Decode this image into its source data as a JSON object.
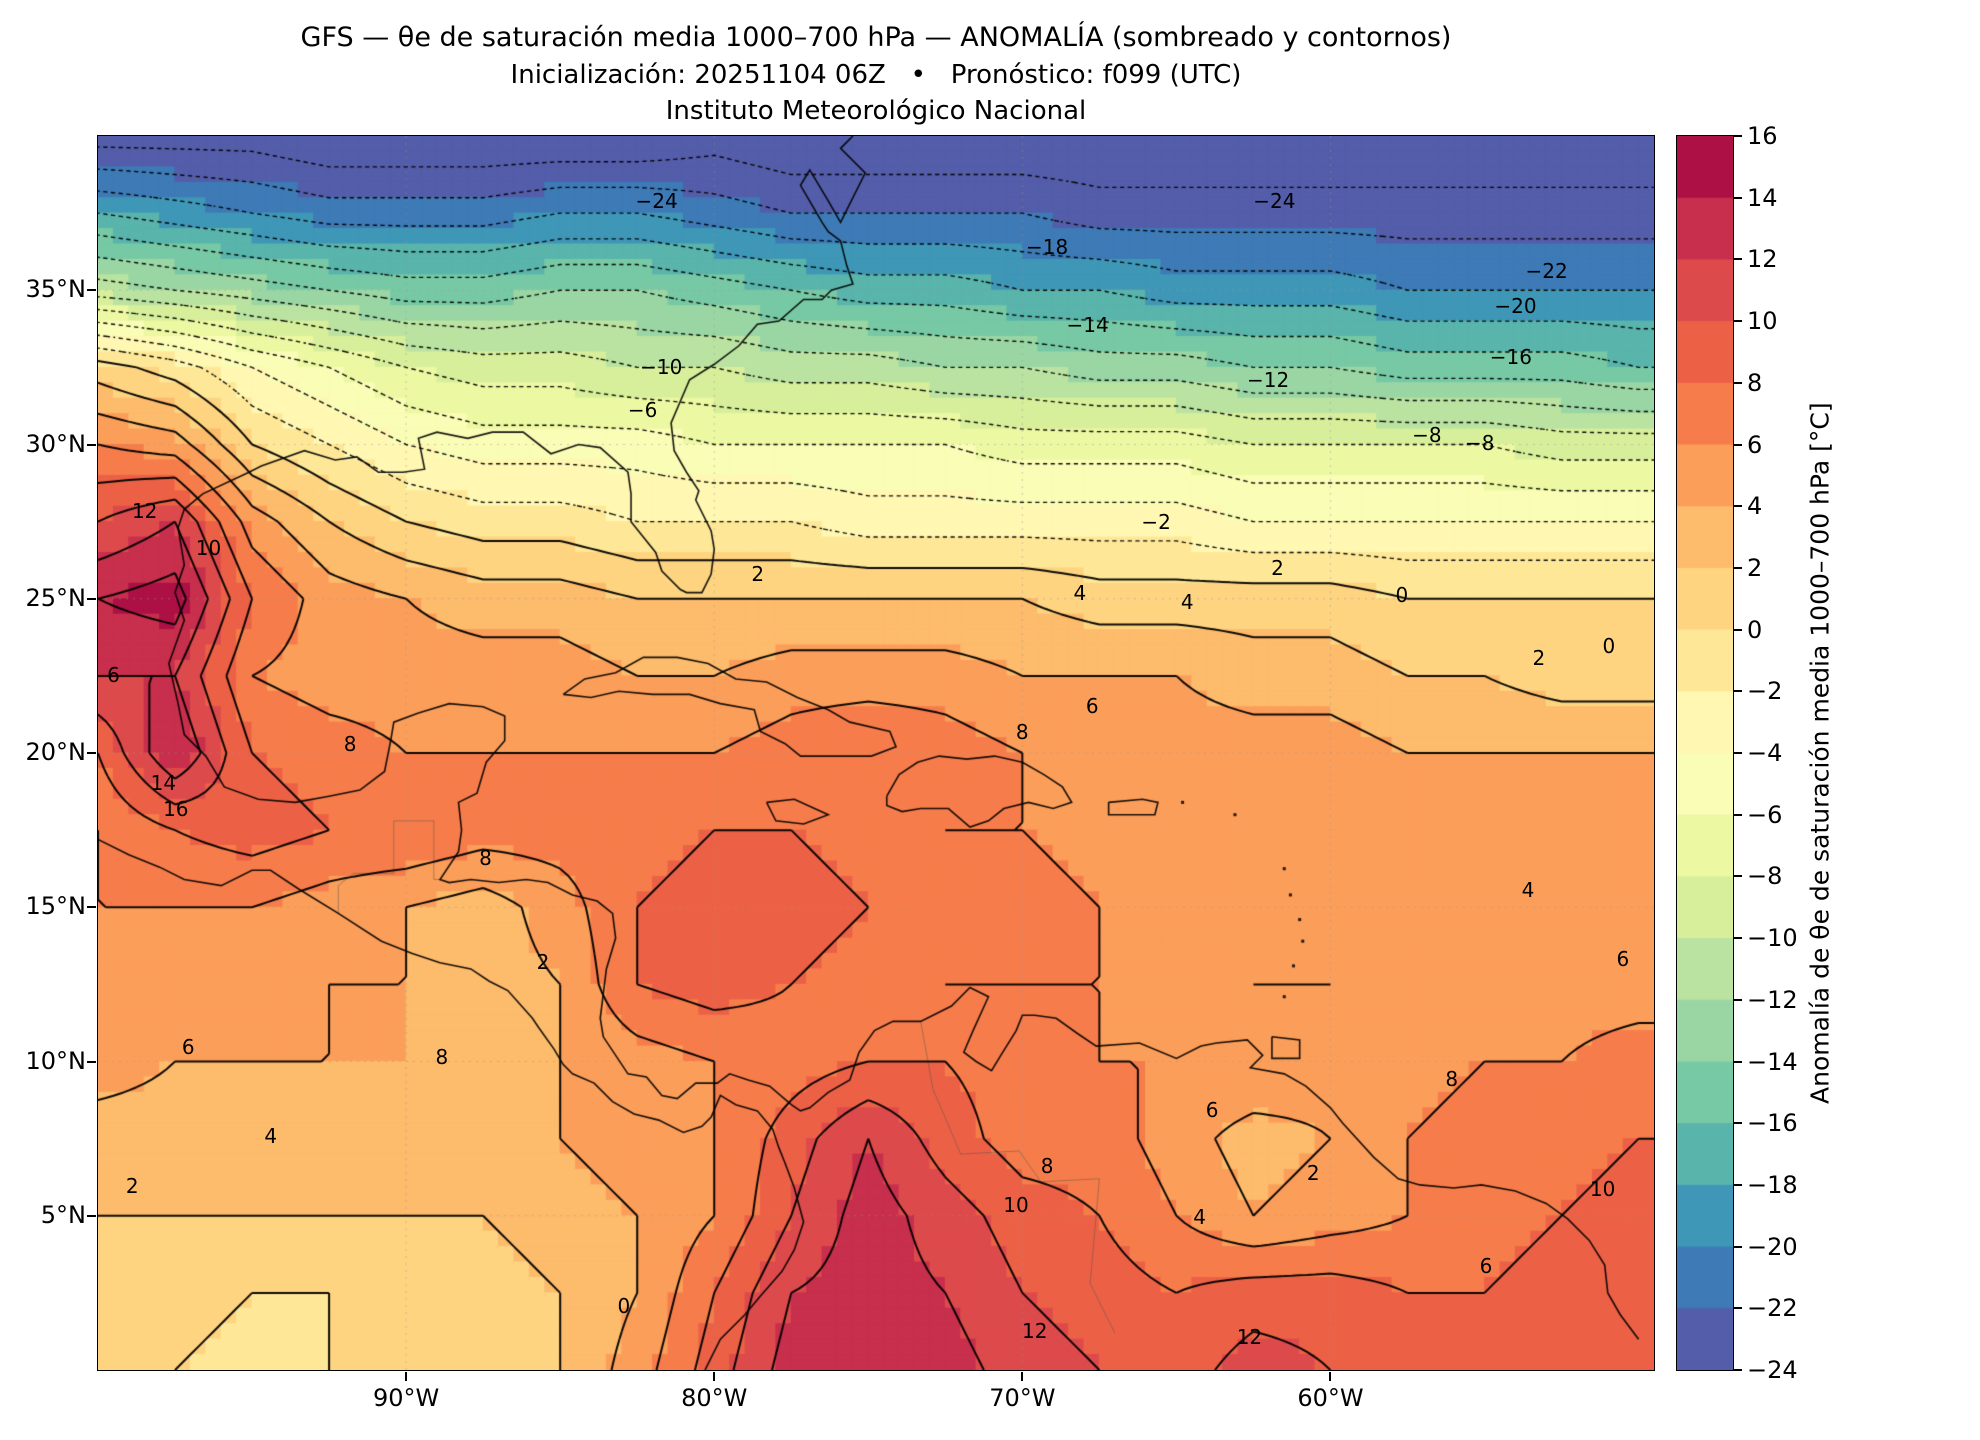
{
  "header": {
    "title_line1": "GFS — θe de saturación media 1000–700 hPa — ANOMALÍA (sombreado y contornos)",
    "title_line2": "Inicialización: 20251104 06Z   •   Pronóstico: f099 (UTC)",
    "title_line3": "Instituto Meteorológico Nacional"
  },
  "axes": {
    "x_ticks": [
      {
        "label": "90°W",
        "lon": -90
      },
      {
        "label": "80°W",
        "lon": -80
      },
      {
        "label": "70°W",
        "lon": -70
      },
      {
        "label": "60°W",
        "lon": -60
      }
    ],
    "y_ticks": [
      {
        "label": "35°N",
        "lat": 35
      },
      {
        "label": "30°N",
        "lat": 30
      },
      {
        "label": "25°N",
        "lat": 25
      },
      {
        "label": "20°N",
        "lat": 20
      },
      {
        "label": "15°N",
        "lat": 15
      },
      {
        "label": "10°N",
        "lat": 10
      },
      {
        "label": "5°N",
        "lat": 5
      }
    ]
  },
  "colorbar": {
    "label": "Anomalía de θe de saturación media 1000–700 hPa [°C]",
    "ticks": [
      "16",
      "14",
      "12",
      "10",
      "8",
      "6",
      "4",
      "2",
      "0",
      "−2",
      "−4",
      "−6",
      "−8",
      "−10",
      "−12",
      "−14",
      "−16",
      "−18",
      "−20",
      "−22",
      "−24"
    ],
    "vmin": -24,
    "vmax": 16,
    "colors": [
      "#535da9",
      "#3d7ab6",
      "#3f97b7",
      "#59b4ab",
      "#77c9a5",
      "#9ad6a4",
      "#bae3a1",
      "#d7ef9b",
      "#ecf8a2",
      "#f9fdb5",
      "#fff7b2",
      "#fee898",
      "#fed481",
      "#fdbb6c",
      "#fb9e5a",
      "#f67d4b",
      "#ec6146",
      "#dd4a4c",
      "#c72f4c",
      "#ac1045"
    ]
  },
  "chart_data": {
    "type": "heatmap",
    "title": "GFS — θe de saturación media 1000–700 hPa — ANOMALÍA (sombreado y contornos)",
    "model": "GFS",
    "init": "20251104 06Z",
    "forecast": "f099 (UTC)",
    "units": "°C",
    "lon_range": [
      -100,
      -49.5
    ],
    "lat_range": [
      0,
      40
    ],
    "contour_levels": {
      "min": -24,
      "max": 16,
      "step": 2
    },
    "grid": {
      "lon_start": -100,
      "lon_step": 2.5,
      "lat_start": 40,
      "lat_step": -2.5,
      "values": [
        [
          -25,
          -25,
          -25,
          -26,
          -26,
          -26,
          -26,
          -26,
          -25,
          -26,
          -26,
          -26,
          -26,
          -26,
          -26,
          -26,
          -26,
          -26,
          -26,
          -26,
          -26
        ],
        [
          -18,
          -19,
          -20,
          -21,
          -21,
          -21,
          -20,
          -20,
          -21,
          -22,
          -22,
          -22,
          -22,
          -23,
          -23,
          -23,
          -23,
          -23,
          -23,
          -23,
          -23
        ],
        [
          -11,
          -12,
          -13,
          -14,
          -15,
          -15,
          -14,
          -14,
          -15,
          -16,
          -17,
          -17,
          -18,
          -18,
          -19,
          -19,
          -19,
          -20,
          -20,
          -20,
          -20
        ],
        [
          1,
          -1,
          -4,
          -6,
          -8,
          -9,
          -9,
          -10,
          -10,
          -11,
          -11,
          -12,
          -12,
          -13,
          -13,
          -14,
          -14,
          -15,
          -15,
          -15,
          -16
        ],
        [
          6,
          5,
          0,
          -2,
          -4,
          -5,
          -5,
          -5,
          -6,
          -6,
          -6,
          -6,
          -7,
          -7,
          -7,
          -8,
          -8,
          -8,
          -8,
          -9,
          -9
        ],
        [
          10,
          12,
          5,
          2,
          0,
          -1,
          -1,
          -2,
          -2,
          -2,
          -3,
          -3,
          -3,
          -3,
          -3,
          -4,
          -4,
          -4,
          -4,
          -4,
          -4
        ],
        [
          14,
          15,
          8,
          5,
          4,
          3,
          3,
          2,
          2,
          2,
          2,
          2,
          2,
          1,
          1,
          1,
          1,
          0,
          0,
          0,
          0
        ],
        [
          12,
          12,
          6,
          5,
          5,
          5,
          5,
          4,
          4,
          5,
          5,
          5,
          4,
          4,
          4,
          3,
          3,
          2,
          2,
          1,
          1
        ],
        [
          8,
          14,
          8,
          7,
          6,
          6,
          6,
          6,
          6,
          7,
          8,
          7,
          6,
          5,
          5,
          5,
          5,
          4,
          4,
          4,
          4
        ],
        [
          6,
          8,
          9,
          8,
          8,
          7,
          7,
          7,
          8,
          8,
          7,
          6,
          6,
          5,
          5,
          5,
          5,
          5,
          5,
          5,
          6
        ],
        [
          6,
          6,
          6,
          5,
          4,
          3,
          5,
          8,
          9,
          9,
          8,
          7,
          7,
          6,
          5,
          5,
          5,
          5,
          5,
          5,
          6
        ],
        [
          5,
          5,
          5,
          4,
          4,
          3,
          4,
          8,
          9,
          8,
          7,
          6,
          6,
          6,
          5,
          4,
          4,
          5,
          5,
          5,
          5
        ],
        [
          5,
          4,
          4,
          4,
          4,
          4,
          4,
          5,
          6,
          7,
          8,
          8,
          7,
          6,
          6,
          6,
          5,
          5,
          6,
          6,
          7
        ],
        [
          3,
          3,
          3,
          3,
          3,
          3,
          4,
          5,
          6,
          9,
          12,
          9,
          7,
          7,
          5,
          3,
          4,
          6,
          7,
          7,
          8
        ],
        [
          2,
          2,
          2,
          2,
          2,
          2,
          3,
          4,
          6,
          10,
          13,
          11,
          9,
          8,
          6,
          4,
          5,
          6,
          7,
          8,
          9
        ],
        [
          1,
          1,
          0,
          0,
          1,
          1,
          2,
          4,
          8,
          12,
          13,
          12,
          10,
          9,
          8,
          9,
          9,
          8,
          8,
          9,
          9
        ],
        [
          0,
          0,
          -1,
          0,
          0,
          1,
          2,
          5,
          9,
          13,
          14,
          13,
          11,
          10,
          9,
          11,
          10,
          9,
          9,
          10,
          10
        ]
      ]
    },
    "contour_labels": [
      {
        "v": "−24",
        "x": 0.359,
        "y": 0.053
      },
      {
        "v": "−24",
        "x": 0.756,
        "y": 0.053
      },
      {
        "v": "−18",
        "x": 0.61,
        "y": 0.09
      },
      {
        "v": "−22",
        "x": 0.931,
        "y": 0.109
      },
      {
        "v": "−20",
        "x": 0.911,
        "y": 0.138
      },
      {
        "v": "−14",
        "x": 0.636,
        "y": 0.153
      },
      {
        "v": "−16",
        "x": 0.908,
        "y": 0.179
      },
      {
        "v": "−10",
        "x": 0.362,
        "y": 0.187
      },
      {
        "v": "−12",
        "x": 0.752,
        "y": 0.198
      },
      {
        "v": "−6",
        "x": 0.35,
        "y": 0.222
      },
      {
        "v": "−8",
        "x": 0.854,
        "y": 0.242
      },
      {
        "v": "−8",
        "x": 0.888,
        "y": 0.249
      },
      {
        "v": "−2",
        "x": 0.68,
        "y": 0.313
      },
      {
        "v": "2",
        "x": 0.424,
        "y": 0.355
      },
      {
        "v": "2",
        "x": 0.758,
        "y": 0.35
      },
      {
        "v": "4",
        "x": 0.631,
        "y": 0.37
      },
      {
        "v": "4",
        "x": 0.7,
        "y": 0.378
      },
      {
        "v": "0",
        "x": 0.838,
        "y": 0.372
      },
      {
        "v": "0",
        "x": 0.971,
        "y": 0.413
      },
      {
        "v": "2",
        "x": 0.926,
        "y": 0.423
      },
      {
        "v": "12",
        "x": 0.03,
        "y": 0.304
      },
      {
        "v": "10",
        "x": 0.071,
        "y": 0.334
      },
      {
        "v": "6",
        "x": 0.01,
        "y": 0.437
      },
      {
        "v": "14",
        "x": 0.042,
        "y": 0.524
      },
      {
        "v": "16",
        "x": 0.05,
        "y": 0.545
      },
      {
        "v": "8",
        "x": 0.162,
        "y": 0.493
      },
      {
        "v": "8",
        "x": 0.594,
        "y": 0.483
      },
      {
        "v": "6",
        "x": 0.639,
        "y": 0.462
      },
      {
        "v": "8",
        "x": 0.249,
        "y": 0.585
      },
      {
        "v": "2",
        "x": 0.286,
        "y": 0.669
      },
      {
        "v": "8",
        "x": 0.221,
        "y": 0.746
      },
      {
        "v": "6",
        "x": 0.058,
        "y": 0.738
      },
      {
        "v": "4",
        "x": 0.111,
        "y": 0.81
      },
      {
        "v": "2",
        "x": 0.022,
        "y": 0.851
      },
      {
        "v": "4",
        "x": 0.919,
        "y": 0.611
      },
      {
        "v": "6",
        "x": 0.98,
        "y": 0.667
      },
      {
        "v": "8",
        "x": 0.87,
        "y": 0.764
      },
      {
        "v": "10",
        "x": 0.967,
        "y": 0.853
      },
      {
        "v": "12",
        "x": 0.602,
        "y": 0.968
      },
      {
        "v": "12",
        "x": 0.74,
        "y": 0.973
      },
      {
        "v": "0",
        "x": 0.338,
        "y": 0.948
      },
      {
        "v": "10",
        "x": 0.59,
        "y": 0.866
      },
      {
        "v": "8",
        "x": 0.61,
        "y": 0.835
      },
      {
        "v": "6",
        "x": 0.716,
        "y": 0.789
      },
      {
        "v": "2",
        "x": 0.781,
        "y": 0.84
      },
      {
        "v": "4",
        "x": 0.708,
        "y": 0.876
      },
      {
        "v": "6",
        "x": 0.892,
        "y": 0.916
      }
    ]
  }
}
